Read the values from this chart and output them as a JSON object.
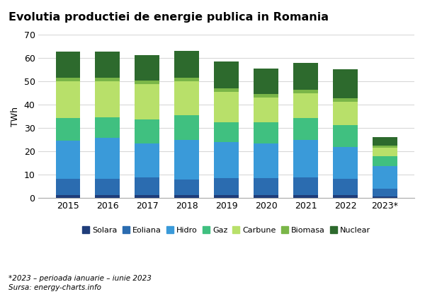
{
  "title": "Evolutia productiei de energie publica in Romania",
  "ylabel": "TWh",
  "years": [
    "2015",
    "2016",
    "2017",
    "2018",
    "2019",
    "2020",
    "2021",
    "2022",
    "2023*"
  ],
  "categories": [
    "Solara",
    "Eoliana",
    "Hidro",
    "Gaz",
    "Carbune",
    "Biomasa",
    "Nuclear"
  ],
  "colors": [
    "#1f3d7a",
    "#2b6cb0",
    "#3a9ad9",
    "#40c080",
    "#b8e06a",
    "#7ab648",
    "#2d6a2d"
  ],
  "data": {
    "Solara": [
      1.2,
      1.2,
      1.3,
      1.2,
      1.3,
      1.3,
      1.3,
      1.3,
      0.6
    ],
    "Eoliana": [
      7.0,
      7.0,
      7.5,
      6.8,
      7.2,
      7.2,
      7.5,
      7.0,
      3.5
    ],
    "Hidro": [
      16.5,
      17.5,
      14.5,
      17.0,
      15.5,
      15.0,
      16.0,
      13.5,
      9.5
    ],
    "Gaz": [
      9.5,
      9.0,
      10.5,
      10.5,
      8.5,
      9.0,
      9.5,
      9.5,
      4.5
    ],
    "Carbune": [
      16.0,
      15.5,
      15.0,
      14.5,
      13.0,
      10.5,
      10.5,
      10.0,
      3.5
    ],
    "Biomasa": [
      1.5,
      1.5,
      1.5,
      1.5,
      1.5,
      1.5,
      1.5,
      1.5,
      1.0
    ],
    "Nuclear": [
      11.2,
      11.0,
      11.0,
      11.5,
      11.5,
      11.0,
      11.5,
      12.5,
      3.5
    ]
  },
  "ylim": [
    0,
    70
  ],
  "yticks": [
    0,
    10,
    20,
    30,
    40,
    50,
    60,
    70
  ],
  "footnote1": "*2023 – perioada ianuarie – iunie 2023",
  "footnote2": "Sursa: energy-charts.info",
  "background_color": "#ffffff",
  "grid_color": "#d8d8d8"
}
